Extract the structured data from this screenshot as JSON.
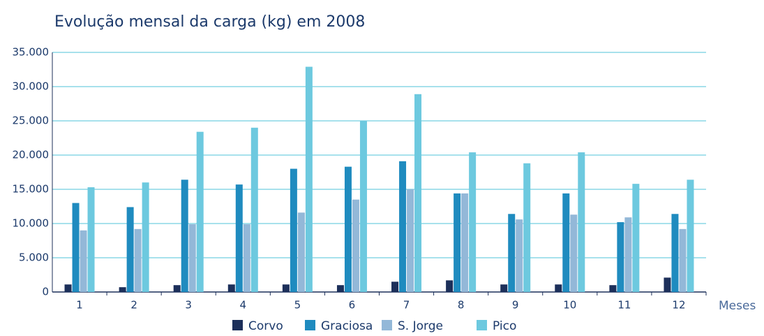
{
  "chart_data": {
    "type": "bar",
    "title": "Evolução mensal da carga (kg) em 2008",
    "x_label": "Meses",
    "categories": [
      "1",
      "2",
      "3",
      "4",
      "5",
      "6",
      "7",
      "8",
      "9",
      "10",
      "11",
      "12"
    ],
    "series": [
      {
        "name": "Corvo",
        "color": "#1c2f5a",
        "values": [
          1100,
          700,
          1000,
          1100,
          1100,
          1000,
          1500,
          1700,
          1100,
          1100,
          1000,
          2100
        ]
      },
      {
        "name": "Graciosa",
        "color": "#1f8bbf",
        "values": [
          13000,
          12400,
          16400,
          15700,
          18000,
          18300,
          19100,
          14400,
          11400,
          14400,
          10200,
          11400
        ]
      },
      {
        "name": "S. Jorge",
        "color": "#93b8d8",
        "values": [
          9000,
          9200,
          9900,
          9900,
          11600,
          13500,
          15000,
          14400,
          10600,
          11300,
          10900,
          9200
        ]
      },
      {
        "name": "Pico",
        "color": "#6dc9df",
        "values": [
          15300,
          16000,
          23400,
          24000,
          32900,
          25000,
          28900,
          20400,
          18800,
          20400,
          15800,
          16400
        ]
      }
    ],
    "ylim": [
      0,
      35000
    ],
    "yticks": [
      0,
      {
        "value": 5000,
        "label": "5.000"
      },
      {
        "value": 10000,
        "label": "10.000"
      },
      {
        "value": 15000,
        "label": "15.000"
      },
      {
        "value": 20000,
        "label": "20.000"
      },
      {
        "value": 25000,
        "label": "25.000"
      },
      {
        "value": 30000,
        "label": "30.000"
      },
      {
        "value": 35000,
        "label": "35.000"
      }
    ],
    "grid": true
  }
}
